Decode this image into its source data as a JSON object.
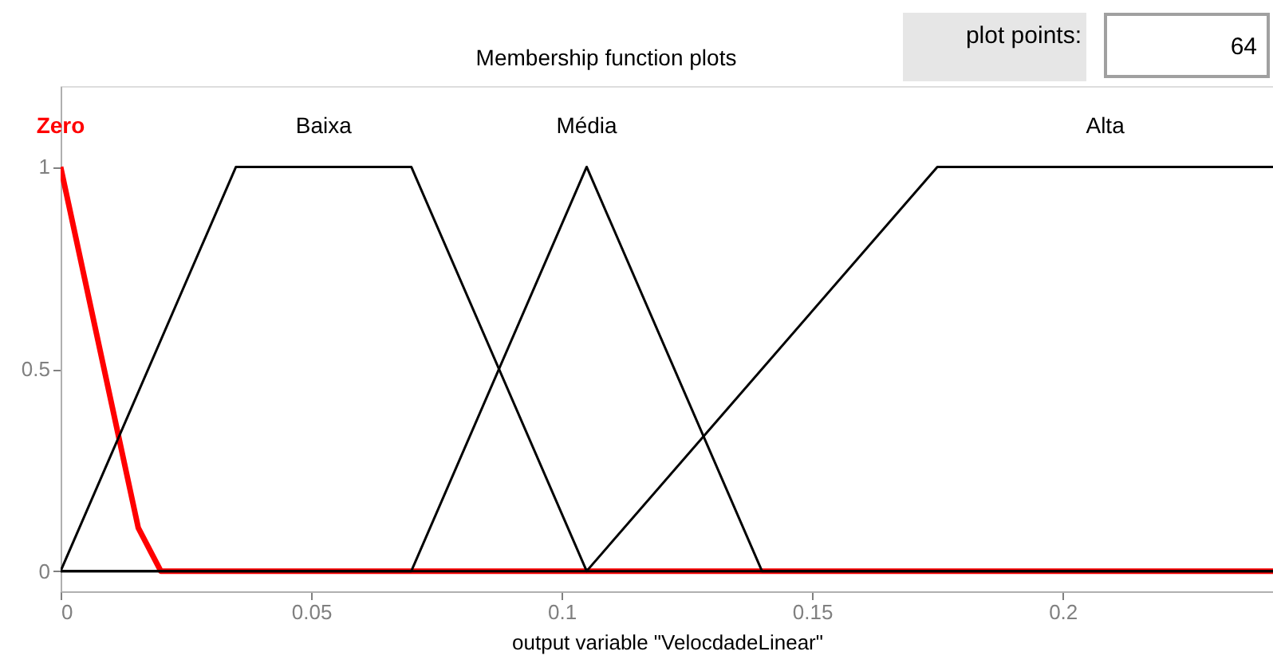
{
  "chart_data": {
    "type": "line",
    "title": "Membership function plots",
    "xlabel": "output variable \"VelocdadeLinear\"",
    "xlim": [
      0,
      0.242
    ],
    "ylim": [
      -0.05,
      1.2
    ],
    "xticks": [
      0,
      0.05,
      0.1,
      0.15,
      0.2
    ],
    "yticks": [
      0,
      0.5,
      1
    ],
    "line_style": "solid",
    "annotations": [
      "plot points:",
      "64"
    ],
    "series": [
      {
        "name": "Zero",
        "color": "#ff0000",
        "x": [
          0,
          0.0155,
          0.02,
          0.242
        ],
        "values": [
          1,
          0.107,
          0,
          0
        ]
      },
      {
        "name": "Baixa",
        "color": "#000000",
        "x": [
          0,
          0.035,
          0.07,
          0.105,
          0.242
        ],
        "values": [
          0,
          1,
          1,
          0,
          0
        ]
      },
      {
        "name": "Média",
        "color": "#000000",
        "x": [
          0,
          0.07,
          0.105,
          0.14,
          0.242
        ],
        "values": [
          0,
          0,
          1,
          0,
          0
        ]
      },
      {
        "name": "Alta",
        "color": "#000000",
        "x": [
          0,
          0.105,
          0.175,
          0.242
        ],
        "values": [
          0,
          0,
          1,
          1
        ]
      }
    ]
  }
}
